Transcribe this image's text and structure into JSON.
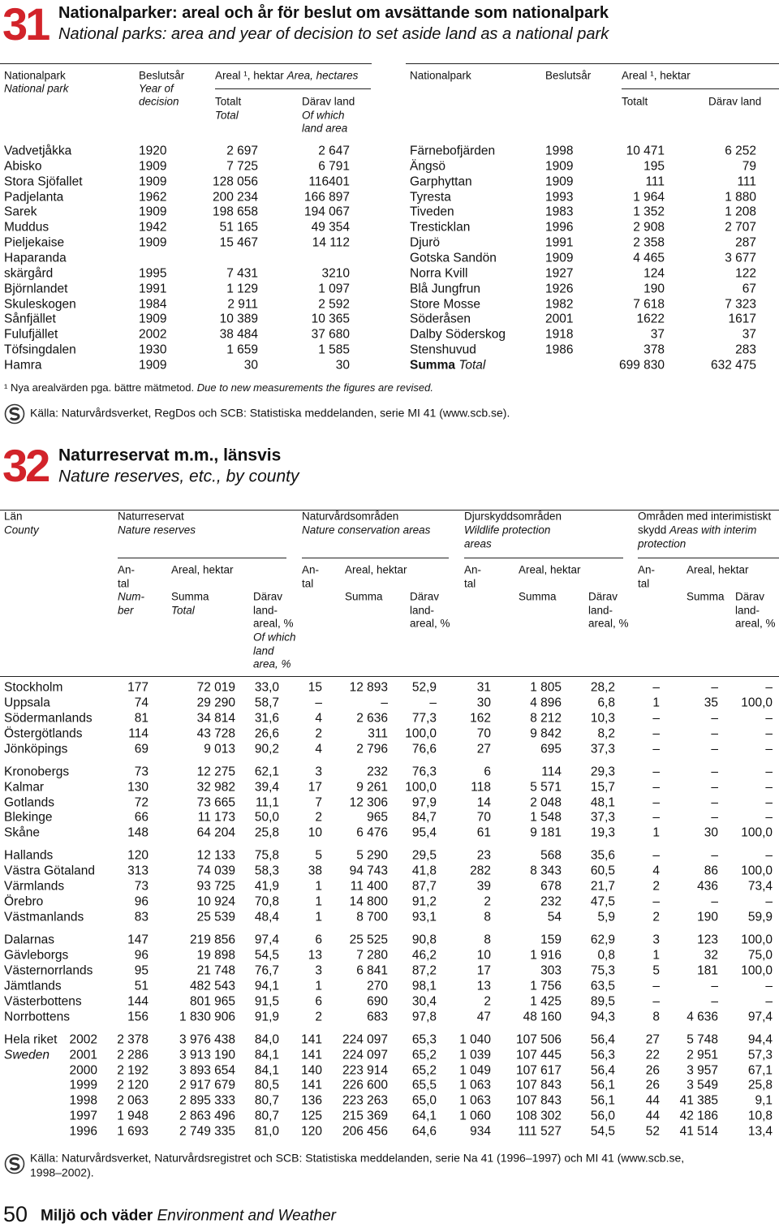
{
  "t31": {
    "number": "31",
    "title": "Nationalparker: areal och år för beslut om avsättande som nationalpark",
    "subtitle": "National parks: area and year of decision to set aside land as a national park",
    "head": {
      "park": "Nationalpark",
      "park_en": "National park",
      "year": "Beslutsår",
      "year_en": [
        "Year of",
        "decision"
      ],
      "area": "Areal ¹, hektar",
      "area_en": "Area, hectares",
      "total": "Totalt",
      "total_en": "Total",
      "land": "Därav land",
      "land_en": [
        "Of which",
        "land area"
      ]
    },
    "rows_left": [
      [
        "Vadvetjåkka",
        "1920",
        "2 697",
        "2 647"
      ],
      [
        "Abisko",
        "1909",
        "7 725",
        "6 791"
      ],
      [
        "Stora Sjöfallet",
        "1909",
        "128 056",
        "116401"
      ],
      [
        "Padjelanta",
        "1962",
        "200 234",
        "166 897"
      ],
      [
        "Sarek",
        "1909",
        "198 658",
        "194 067"
      ],
      [
        "Muddus",
        "1942",
        "51 165",
        "49 354"
      ],
      [
        "Pieljekaise",
        "1909",
        "15 467",
        "14 112"
      ],
      [
        [
          "Haparanda",
          "skärgård"
        ],
        "1995",
        "7 431",
        "3210"
      ],
      [
        "Björnlandet",
        "1991",
        "1 129",
        "1 097"
      ],
      [
        "Skuleskogen",
        "1984",
        "2 911",
        "2 592"
      ],
      [
        "Sånfjället",
        "1909",
        "10 389",
        "10 365"
      ],
      [
        "Fulufjället",
        "2002",
        "38 484",
        "37 680"
      ],
      [
        "Töfsingdalen",
        "1930",
        "1 659",
        "1 585"
      ],
      [
        "Hamra",
        "1909",
        "30",
        "30"
      ]
    ],
    "rows_right": [
      [
        "Färnebofjärden",
        "1998",
        "10 471",
        "6 252"
      ],
      [
        "Ängsö",
        "1909",
        "195",
        "79"
      ],
      [
        "Garphyttan",
        "1909",
        "111",
        "111"
      ],
      [
        "Tyresta",
        "1993",
        "1 964",
        "1 880"
      ],
      [
        "Tiveden",
        "1983",
        "1 352",
        "1 208"
      ],
      [
        "Tresticklan",
        "1996",
        "2 908",
        "2 707"
      ],
      [
        "Djurö",
        "1991",
        "2 358",
        "287"
      ],
      [
        "Gotska Sandön",
        "1909",
        "4 465",
        "3 677"
      ],
      [
        "Norra Kvill",
        "1927",
        "124",
        "122"
      ],
      [
        "Blå Jungfrun",
        "1926",
        "190",
        "67"
      ],
      [
        "Store Mosse",
        "1982",
        "7 618",
        "7 323"
      ],
      [
        "Söderåsen",
        "2001",
        "1622",
        "1617"
      ],
      [
        "Dalby Söderskog",
        "1918",
        "37",
        "37"
      ],
      [
        "Stenshuvud",
        "1986",
        "378",
        "283"
      ]
    ],
    "sum": {
      "label": "Summa",
      "label_en": "Total",
      "total": "699 830",
      "land": "632 475"
    },
    "footnote": "¹ Nya arealvärden pga. bättre mätmetod.",
    "footnote_en": "Due to new measurements the figures are revised.",
    "source": "Källa: Naturvårdsverket, RegDos och SCB: Statistiska meddelanden, serie MI 41 (www.scb.se)."
  },
  "t32": {
    "number": "32",
    "title": "Naturreservat m.m., länsvis",
    "subtitle": "Nature reserves, etc., by county",
    "head": {
      "county": "Län",
      "county_en": "County",
      "groups": [
        {
          "sv": [
            "Naturreservat"
          ],
          "en": [
            "Nature reserves"
          ]
        },
        {
          "sv": [
            "Naturvårdsområden"
          ],
          "en": [
            "Nature conservation areas"
          ]
        },
        {
          "sv": [
            "Djurskyddsområden"
          ],
          "en": [
            "Wildlife protection",
            "areas"
          ]
        },
        {
          "sv": [
            "Områden med interimistiskt",
            "skydd"
          ],
          "en": [
            "Areas with interim",
            "protection"
          ]
        }
      ],
      "count": [
        "An-",
        "tal"
      ],
      "count_en": [
        "Num-",
        "ber"
      ],
      "area": "Areal, hektar",
      "sum": "Summa",
      "sum_en": "Total",
      "share": [
        "Därav",
        "land-",
        "areal, %"
      ],
      "share_en": [
        "Of which",
        "land",
        "area, %"
      ]
    },
    "blocks": [
      [
        [
          "Stockholm",
          "177",
          "72 019",
          "33,0",
          "15",
          "12 893",
          "52,9",
          "31",
          "1 805",
          "28,2",
          "–",
          "–",
          "–"
        ],
        [
          "Uppsala",
          "74",
          "29 290",
          "58,7",
          "–",
          "–",
          "–",
          "30",
          "4 896",
          "6,8",
          "1",
          "35",
          "100,0"
        ],
        [
          "Södermanlands",
          "81",
          "34 814",
          "31,6",
          "4",
          "2 636",
          "77,3",
          "162",
          "8 212",
          "10,3",
          "–",
          "–",
          "–"
        ],
        [
          "Östergötlands",
          "114",
          "43 728",
          "26,6",
          "2",
          "311",
          "100,0",
          "70",
          "9 842",
          "8,2",
          "–",
          "–",
          "–"
        ],
        [
          "Jönköpings",
          "69",
          "9 013",
          "90,2",
          "4",
          "2 796",
          "76,6",
          "27",
          "695",
          "37,3",
          "–",
          "–",
          "–"
        ]
      ],
      [
        [
          "Kronobergs",
          "73",
          "12 275",
          "62,1",
          "3",
          "232",
          "76,3",
          "6",
          "114",
          "29,3",
          "–",
          "–",
          "–"
        ],
        [
          "Kalmar",
          "130",
          "32 982",
          "39,4",
          "17",
          "9 261",
          "100,0",
          "118",
          "5 571",
          "15,7",
          "–",
          "–",
          "–"
        ],
        [
          "Gotlands",
          "72",
          "73 665",
          "11,1",
          "7",
          "12 306",
          "97,9",
          "14",
          "2 048",
          "48,1",
          "–",
          "–",
          "–"
        ],
        [
          "Blekinge",
          "66",
          "11 173",
          "50,0",
          "2",
          "965",
          "84,7",
          "70",
          "1 548",
          "37,3",
          "–",
          "–",
          "–"
        ],
        [
          "Skåne",
          "148",
          "64 204",
          "25,8",
          "10",
          "6 476",
          "95,4",
          "61",
          "9 181",
          "19,3",
          "1",
          "30",
          "100,0"
        ]
      ],
      [
        [
          "Hallands",
          "120",
          "12 133",
          "75,8",
          "5",
          "5 290",
          "29,5",
          "23",
          "568",
          "35,6",
          "–",
          "–",
          "–"
        ],
        [
          "Västra Götaland",
          "313",
          "74 039",
          "58,3",
          "38",
          "94 743",
          "41,8",
          "282",
          "8 343",
          "60,5",
          "4",
          "86",
          "100,0"
        ],
        [
          "Värmlands",
          "73",
          "93 725",
          "41,9",
          "1",
          "11 400",
          "87,7",
          "39",
          "678",
          "21,7",
          "2",
          "436",
          "73,4"
        ],
        [
          "Örebro",
          "96",
          "10 924",
          "70,8",
          "1",
          "14 800",
          "91,2",
          "2",
          "232",
          "47,5",
          "–",
          "–",
          "–"
        ],
        [
          "Västmanlands",
          "83",
          "25 539",
          "48,4",
          "1",
          "8 700",
          "93,1",
          "8",
          "54",
          "5,9",
          "2",
          "190",
          "59,9"
        ]
      ],
      [
        [
          "Dalarnas",
          "147",
          "219 856",
          "97,4",
          "6",
          "25 525",
          "90,8",
          "8",
          "159",
          "62,9",
          "3",
          "123",
          "100,0"
        ],
        [
          "Gävleborgs",
          "96",
          "19 898",
          "54,5",
          "13",
          "7 280",
          "46,2",
          "10",
          "1 916",
          "0,8",
          "1",
          "32",
          "75,0"
        ],
        [
          "Västernorrlands",
          "95",
          "21 748",
          "76,7",
          "3",
          "6 841",
          "87,2",
          "17",
          "303",
          "75,3",
          "5",
          "181",
          "100,0"
        ],
        [
          "Jämtlands",
          "51",
          "482 543",
          "94,1",
          "1",
          "270",
          "98,1",
          "13",
          "1 756",
          "63,5",
          "–",
          "–",
          "–"
        ],
        [
          "Västerbottens",
          "144",
          "801 965",
          "91,5",
          "6",
          "690",
          "30,4",
          "2",
          "1 425",
          "89,5",
          "–",
          "–",
          "–"
        ],
        [
          "Norrbottens",
          "156",
          "1 830 906",
          "91,9",
          "2",
          "683",
          "97,8",
          "47",
          "48 160",
          "94,3",
          "8",
          "4 636",
          "97,4"
        ]
      ]
    ],
    "sweden": {
      "label": "Hela riket",
      "label_en": "Sweden",
      "rows": [
        [
          "2002",
          "2 378",
          "3 976 438",
          "84,0",
          "141",
          "224 097",
          "65,3",
          "1 040",
          "107 506",
          "56,4",
          "27",
          "5 748",
          "94,4"
        ],
        [
          "2001",
          "2 286",
          "3 913 190",
          "84,1",
          "141",
          "224 097",
          "65,2",
          "1 039",
          "107 445",
          "56,3",
          "22",
          "2 951",
          "57,3"
        ],
        [
          "2000",
          "2 192",
          "3 893 654",
          "84,1",
          "140",
          "223 914",
          "65,2",
          "1 049",
          "107 617",
          "56,4",
          "26",
          "3 957",
          "67,1"
        ],
        [
          "1999",
          "2 120",
          "2 917 679",
          "80,5",
          "141",
          "226 600",
          "65,5",
          "1 063",
          "107 843",
          "56,1",
          "26",
          "3 549",
          "25,8"
        ],
        [
          "1998",
          "2 063",
          "2 895 333",
          "80,7",
          "136",
          "223 263",
          "65,0",
          "1 063",
          "107 843",
          "56,1",
          "44",
          "41 385",
          "9,1"
        ],
        [
          "1997",
          "1 948",
          "2 863 496",
          "80,7",
          "125",
          "215 369",
          "64,1",
          "1 060",
          "108 302",
          "56,0",
          "44",
          "42 186",
          "10,8"
        ],
        [
          "1996",
          "1 693",
          "2 749 335",
          "81,0",
          "120",
          "206 456",
          "64,6",
          "934",
          "111 527",
          "54,5",
          "52",
          "41 514",
          "13,4"
        ]
      ]
    },
    "source": [
      "Källa: Naturvårdsverket, Naturvårdsregistret och SCB: Statistiska meddelanden, serie Na 41 (1996–1997) och MI 41 (www.scb.se,",
      "1998–2002)."
    ]
  },
  "footer": {
    "page": "50",
    "section": "Miljö och väder",
    "section_en": "Environment and Weather"
  }
}
